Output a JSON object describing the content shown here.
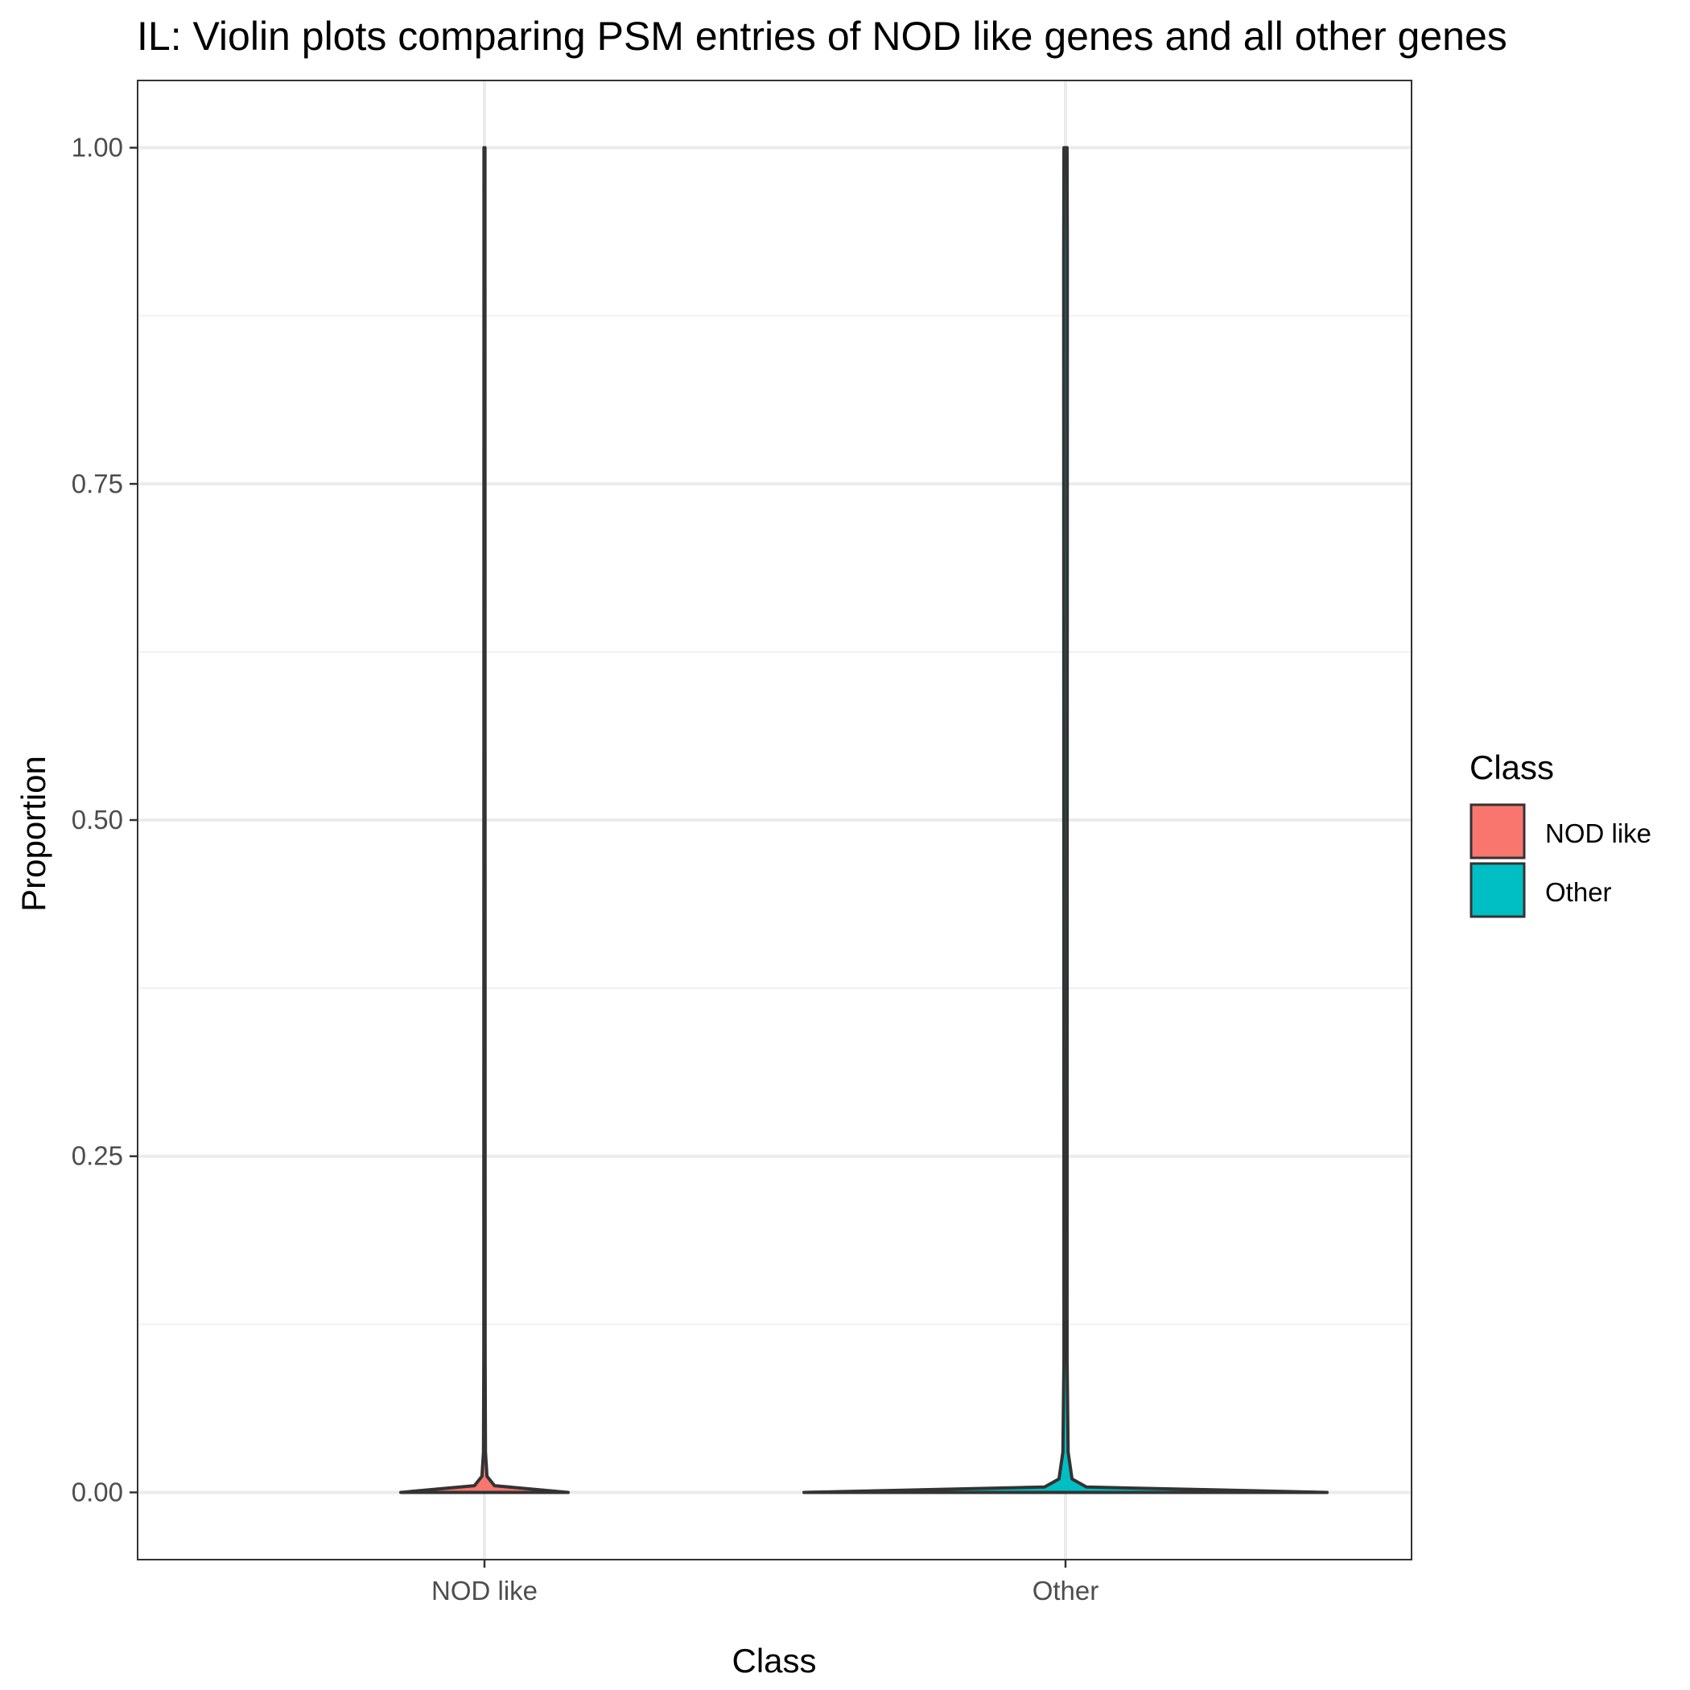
{
  "chart_data": {
    "type": "violin",
    "title": "IL: Violin plots comparing PSM entries of NOD like genes and all other genes",
    "xlabel": "Class",
    "ylabel": "Proportion",
    "categories": [
      "NOD like",
      "Other"
    ],
    "ylim": [
      -0.05,
      1.05
    ],
    "yticks": [
      0.0,
      0.25,
      0.5,
      0.75,
      1.0
    ],
    "ytick_labels": [
      "0.00",
      "0.25",
      "0.50",
      "0.75",
      "1.00"
    ],
    "grid": true,
    "legend": {
      "title": "Class",
      "position": "right",
      "entries": [
        {
          "label": "NOD like",
          "color": "#F8766D"
        },
        {
          "label": "Other",
          "color": "#00BFC4"
        }
      ]
    },
    "series": [
      {
        "name": "NOD like",
        "color": "#F8766D",
        "min": 0.0,
        "max": 1.0,
        "density": [
          [
            0.0,
            1.0
          ],
          [
            0.005,
            0.12
          ],
          [
            0.012,
            0.03
          ],
          [
            0.03,
            0.012
          ],
          [
            0.1,
            0.008
          ],
          [
            1.0,
            0.006
          ]
        ]
      },
      {
        "name": "Other",
        "color": "#00BFC4",
        "min": 0.0,
        "max": 1.0,
        "density": [
          [
            0.0,
            1.0
          ],
          [
            0.004,
            0.08
          ],
          [
            0.01,
            0.025
          ],
          [
            0.03,
            0.01
          ],
          [
            0.1,
            0.006
          ],
          [
            0.917,
            0.007
          ],
          [
            1.0,
            0.006
          ]
        ]
      }
    ]
  }
}
